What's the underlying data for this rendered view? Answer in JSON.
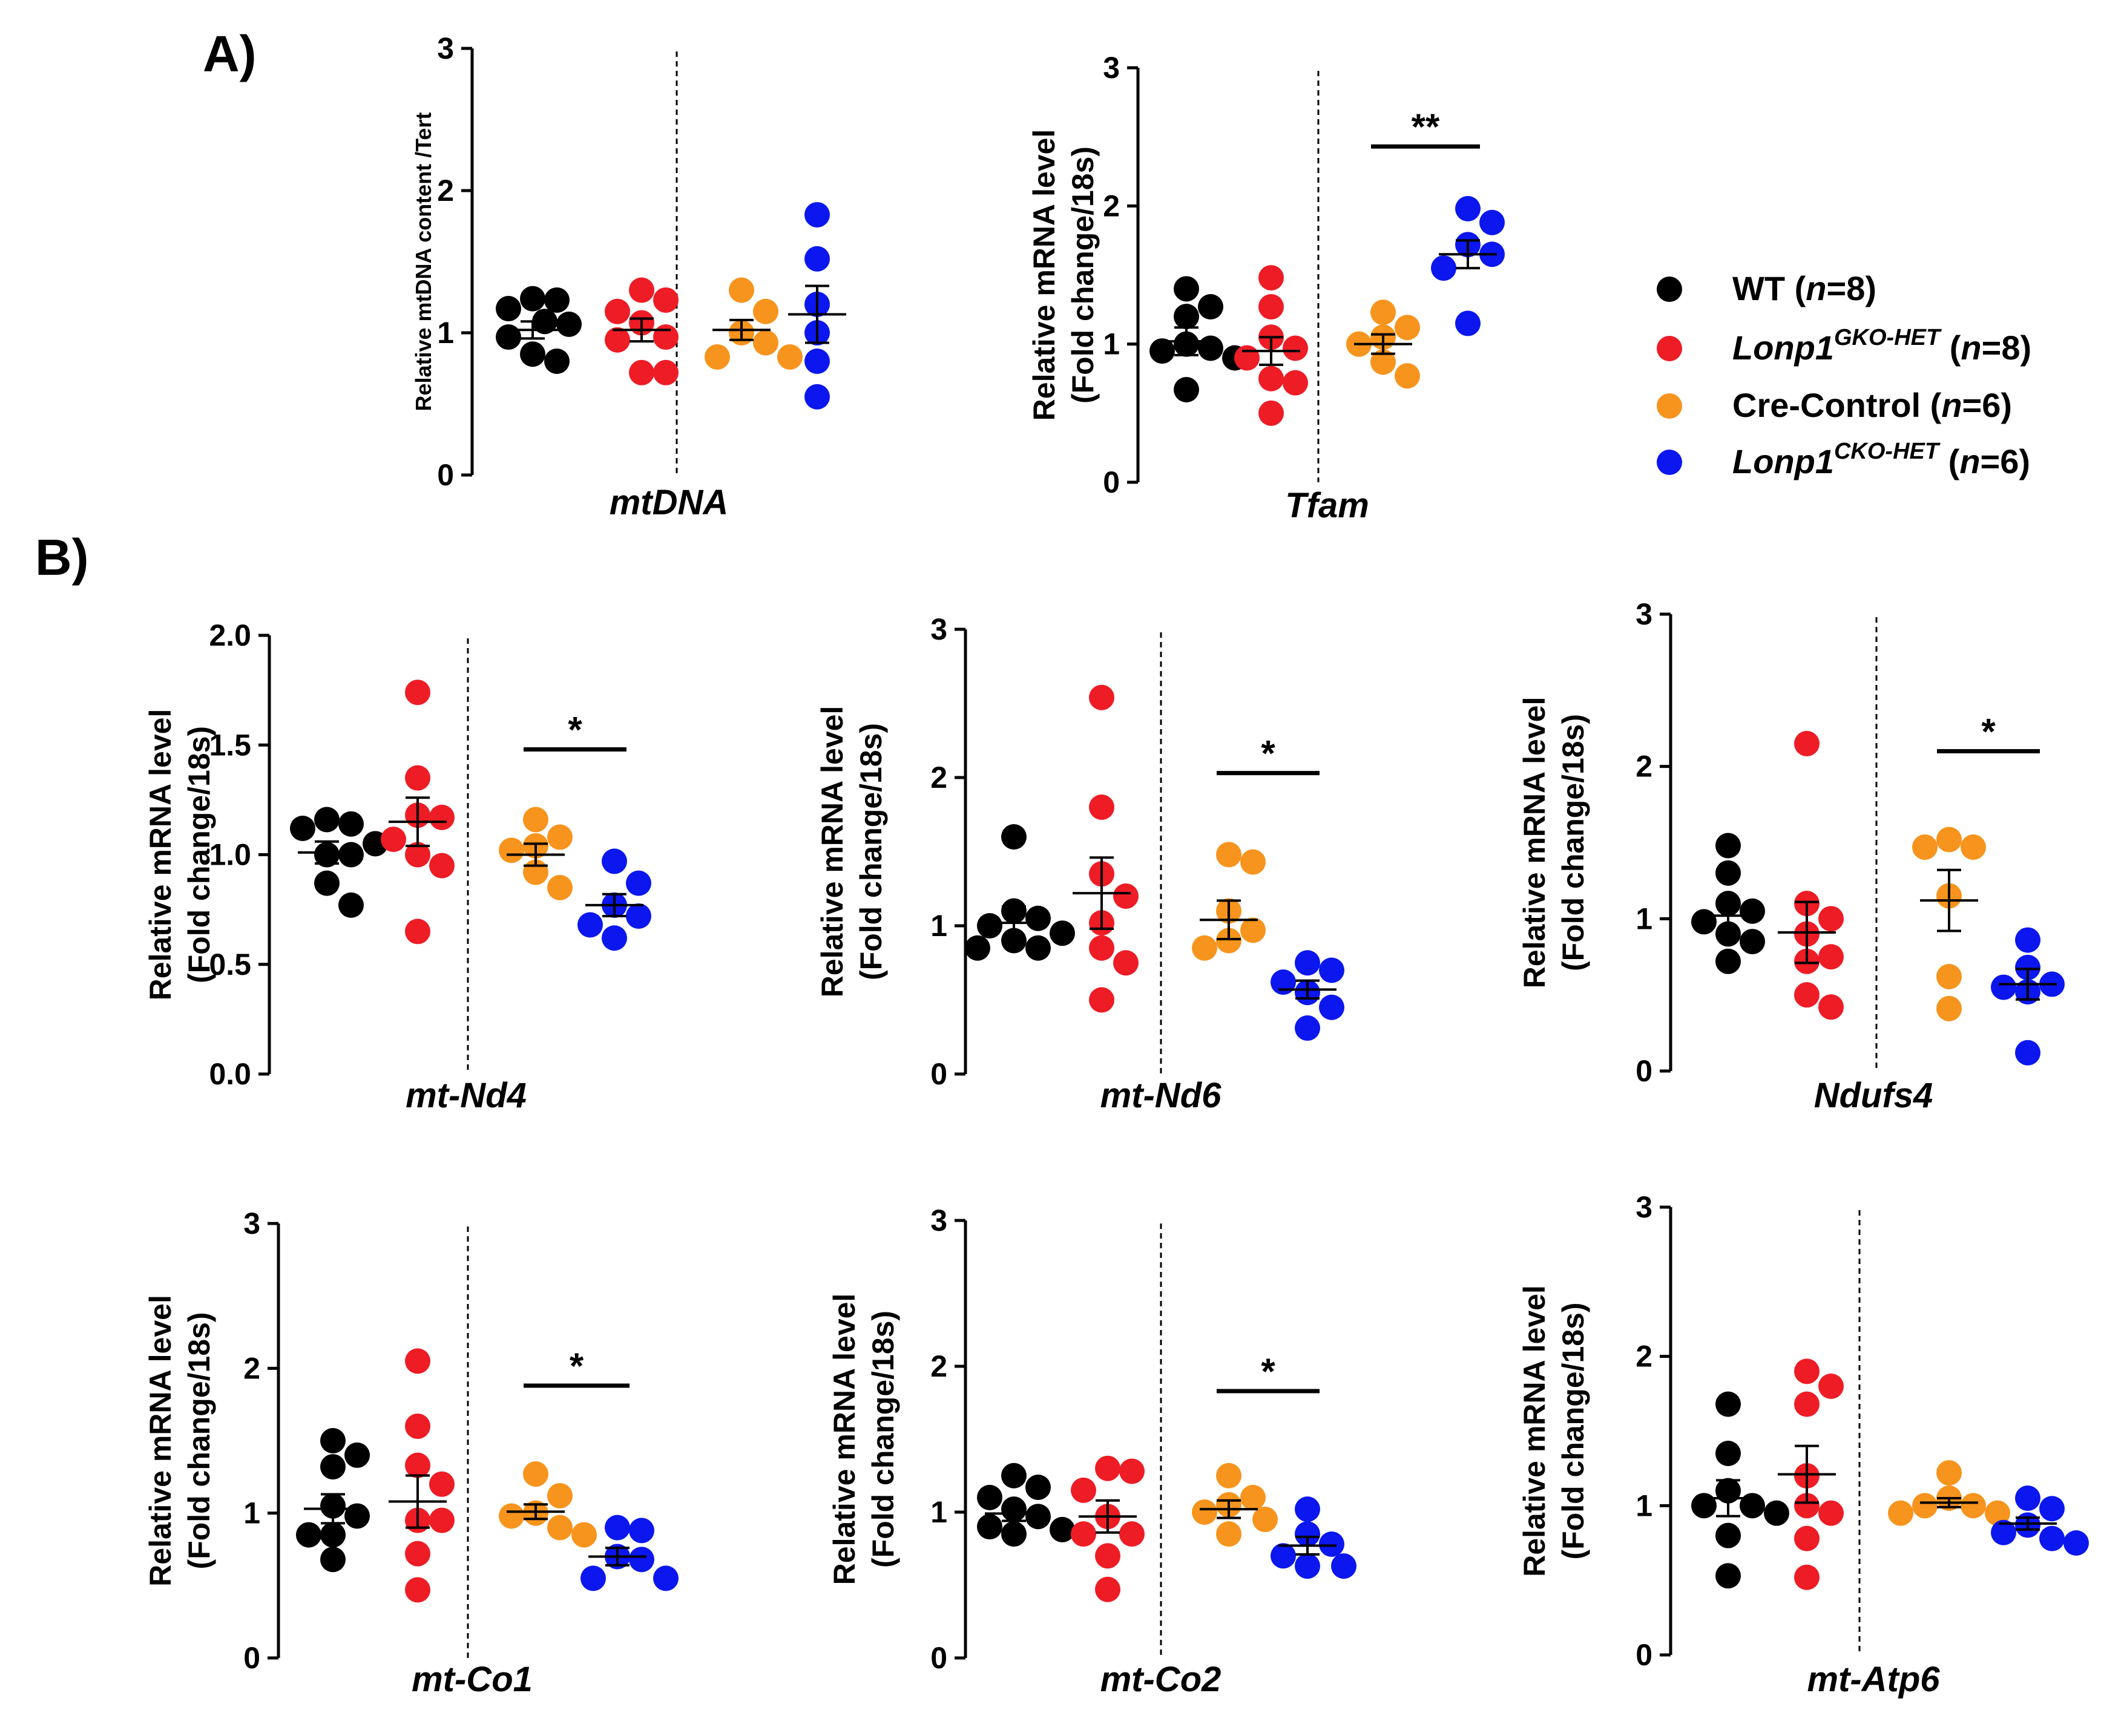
{
  "panels": {
    "a_label": "A)",
    "b_label": "B)"
  },
  "legend": {
    "items": [
      {
        "color": "#000000",
        "name": "WT",
        "sup": "",
        "n": "8",
        "italic": false
      },
      {
        "color": "#ee1c25",
        "name": "Lonp1",
        "sup": "GKO-HET",
        "n": "8",
        "italic": true
      },
      {
        "color": "#f7941d",
        "name": "Cre-Control",
        "sup": "",
        "n": "6",
        "italic": false
      },
      {
        "color": "#0b17ee",
        "name": "Lonp1",
        "sup": "CKO-HET",
        "n": "6",
        "italic": true
      }
    ]
  },
  "chart_data": [
    {
      "type": "scatter",
      "title": "mtDNA",
      "ylabel": [
        "Relative mtDNA content /Tert"
      ],
      "ylim": [
        0,
        3
      ],
      "yticks": [
        "0",
        "1",
        "2",
        "3"
      ],
      "significance": null,
      "groups": [
        {
          "name": "WT",
          "color": "#000000",
          "mean": 1.02,
          "sem": 0.06,
          "points": [
            1.23,
            1.24,
            1.17,
            1.08,
            1.06,
            0.97,
            0.85,
            0.8
          ]
        },
        {
          "name": "Lonp1 GKO-HET",
          "color": "#ee1c25",
          "mean": 1.02,
          "sem": 0.08,
          "points": [
            1.3,
            1.23,
            1.15,
            1.07,
            0.97,
            0.95,
            0.72,
            0.72
          ]
        },
        {
          "name": "Cre-Control",
          "color": "#f7941d",
          "mean": 1.02,
          "sem": 0.07,
          "points": [
            1.3,
            1.15,
            1.0,
            0.93,
            0.83,
            0.83
          ]
        },
        {
          "name": "Lonp1 CKO-HET",
          "color": "#0b17ee",
          "mean": 1.13,
          "sem": 0.2,
          "points": [
            1.83,
            1.52,
            1.2,
            1.0,
            0.8,
            0.55
          ]
        }
      ]
    },
    {
      "type": "scatter",
      "title": "Tfam",
      "ylabel": [
        "Relative mRNA level",
        "(Fold change/18s)"
      ],
      "ylim": [
        0,
        3
      ],
      "yticks": [
        "0",
        "1",
        "2",
        "3"
      ],
      "significance": {
        "label": "**",
        "y": 2.43
      },
      "groups": [
        {
          "name": "WT",
          "color": "#000000",
          "mean": 1.02,
          "sem": 0.1,
          "points": [
            1.4,
            1.27,
            1.2,
            1.0,
            0.97,
            0.95,
            0.9,
            0.67
          ]
        },
        {
          "name": "Lonp1 GKO-HET",
          "color": "#ee1c25",
          "mean": 0.95,
          "sem": 0.1,
          "points": [
            1.48,
            1.27,
            1.05,
            0.97,
            0.9,
            0.75,
            0.72,
            0.5
          ]
        },
        {
          "name": "Cre-Control",
          "color": "#f7941d",
          "mean": 1.0,
          "sem": 0.07,
          "points": [
            1.23,
            1.12,
            1.05,
            1.0,
            0.87,
            0.77
          ]
        },
        {
          "name": "Lonp1 CKO-HET",
          "color": "#0b17ee",
          "mean": 1.65,
          "sem": 0.1,
          "points": [
            1.98,
            1.88,
            1.72,
            1.65,
            1.55,
            1.15
          ]
        }
      ]
    },
    {
      "type": "scatter",
      "title": "mt-Nd4",
      "ylabel": [
        "Relative mRNA level",
        "(Fold change/18s)"
      ],
      "ylim": [
        0,
        2
      ],
      "yticks": [
        "0.0",
        "0.5",
        "1.0",
        "1.5",
        "2.0"
      ],
      "significance": {
        "label": "*",
        "y": 1.48
      },
      "groups": [
        {
          "name": "WT",
          "color": "#000000",
          "mean": 1.01,
          "sem": 0.05,
          "points": [
            1.16,
            1.14,
            1.12,
            1.05,
            1.0,
            1.0,
            0.87,
            0.77
          ]
        },
        {
          "name": "Lonp1 GKO-HET",
          "color": "#ee1c25",
          "mean": 1.15,
          "sem": 0.11,
          "points": [
            1.74,
            1.35,
            1.18,
            1.17,
            1.07,
            1.0,
            0.95,
            0.65
          ]
        },
        {
          "name": "Cre-Control",
          "color": "#f7941d",
          "mean": 1.0,
          "sem": 0.05,
          "points": [
            1.16,
            1.08,
            1.04,
            1.02,
            0.92,
            0.85
          ]
        },
        {
          "name": "Lonp1 CKO-HET",
          "color": "#0b17ee",
          "mean": 0.77,
          "sem": 0.05,
          "points": [
            0.97,
            0.87,
            0.77,
            0.72,
            0.68,
            0.62
          ]
        }
      ]
    },
    {
      "type": "scatter",
      "title": "mt-Nd6",
      "ylabel": [
        "Relative mRNA level",
        "(Fold change/18s)"
      ],
      "ylim": [
        0,
        3
      ],
      "yticks": [
        "0",
        "1",
        "2",
        "3"
      ],
      "significance": {
        "label": "*",
        "y": 2.03
      },
      "groups": [
        {
          "name": "WT",
          "color": "#000000",
          "mean": 1.02,
          "sem": 0.11,
          "points": [
            1.6,
            1.1,
            1.05,
            1.0,
            0.95,
            0.85,
            0.9,
            0.85
          ]
        },
        {
          "name": "Lonp1 GKO-HET",
          "color": "#ee1c25",
          "mean": 1.22,
          "sem": 0.24,
          "points": [
            2.54,
            1.8,
            1.35,
            1.2,
            1.02,
            0.85,
            0.75,
            0.5
          ]
        },
        {
          "name": "Cre-Control",
          "color": "#f7941d",
          "mean": 1.04,
          "sem": 0.13,
          "points": [
            1.48,
            1.43,
            1.1,
            0.97,
            0.9,
            0.85
          ]
        },
        {
          "name": "Lonp1 CKO-HET",
          "color": "#0b17ee",
          "mean": 0.57,
          "sem": 0.06,
          "points": [
            0.75,
            0.7,
            0.62,
            0.55,
            0.45,
            0.31
          ]
        }
      ]
    },
    {
      "type": "scatter",
      "title": "Ndufs4",
      "ylabel": [
        "Relative mRNA level",
        "(Fold change/18s)"
      ],
      "ylim": [
        0,
        3
      ],
      "yticks": [
        "0",
        "1",
        "2",
        "3"
      ],
      "significance": {
        "label": "*",
        "y": 2.1
      },
      "groups": [
        {
          "name": "WT",
          "color": "#000000",
          "mean": 1.02,
          "sem": 0.1,
          "points": [
            1.48,
            1.3,
            1.1,
            1.05,
            0.98,
            0.9,
            0.85,
            0.72
          ]
        },
        {
          "name": "Lonp1 GKO-HET",
          "color": "#ee1c25",
          "mean": 0.91,
          "sem": 0.2,
          "points": [
            2.15,
            1.1,
            1.0,
            0.9,
            0.75,
            0.72,
            0.5,
            0.42
          ]
        },
        {
          "name": "Cre-Control",
          "color": "#f7941d",
          "mean": 1.12,
          "sem": 0.2,
          "points": [
            1.52,
            1.47,
            1.47,
            1.15,
            0.62,
            0.41
          ]
        },
        {
          "name": "Lonp1 CKO-HET",
          "color": "#0b17ee",
          "mean": 0.57,
          "sem": 0.1,
          "points": [
            0.86,
            0.68,
            0.57,
            0.55,
            0.52,
            0.12
          ]
        }
      ]
    },
    {
      "type": "scatter",
      "title": "mt-Co1",
      "ylabel": [
        "Relative mRNA level",
        "(Fold change/18s)"
      ],
      "ylim": [
        0,
        3
      ],
      "yticks": [
        "0",
        "1",
        "2",
        "3"
      ],
      "significance": {
        "label": "*",
        "y": 1.88
      },
      "groups": [
        {
          "name": "WT",
          "color": "#000000",
          "mean": 1.03,
          "sem": 0.1,
          "points": [
            1.5,
            1.4,
            1.32,
            1.05,
            0.98,
            0.85,
            0.85,
            0.68
          ]
        },
        {
          "name": "Lonp1 GKO-HET",
          "color": "#ee1c25",
          "mean": 1.08,
          "sem": 0.18,
          "points": [
            2.05,
            1.6,
            1.33,
            1.2,
            0.95,
            0.95,
            0.72,
            0.47
          ]
        },
        {
          "name": "Cre-Control",
          "color": "#f7941d",
          "mean": 1.01,
          "sem": 0.05,
          "points": [
            1.27,
            1.12,
            1.0,
            0.98,
            0.9,
            0.85
          ]
        },
        {
          "name": "Lonp1 CKO-HET",
          "color": "#0b17ee",
          "mean": 0.7,
          "sem": 0.06,
          "points": [
            0.9,
            0.88,
            0.7,
            0.68,
            0.55,
            0.55
          ]
        }
      ]
    },
    {
      "type": "scatter",
      "title": "mt-Co2",
      "ylabel": [
        "Relative mRNA level",
        "(Fold change/18s)"
      ],
      "ylim": [
        0,
        3
      ],
      "yticks": [
        "0",
        "1",
        "2",
        "3"
      ],
      "significance": {
        "label": "*",
        "y": 1.83
      },
      "groups": [
        {
          "name": "WT",
          "color": "#000000",
          "mean": 0.99,
          "sem": 0.05,
          "points": [
            1.25,
            1.17,
            1.1,
            1.02,
            0.97,
            0.9,
            0.88,
            0.85
          ]
        },
        {
          "name": "Lonp1 GKO-HET",
          "color": "#ee1c25",
          "mean": 0.97,
          "sem": 0.11,
          "points": [
            1.3,
            1.28,
            1.15,
            0.97,
            0.85,
            0.85,
            0.7,
            0.47
          ]
        },
        {
          "name": "Cre-Control",
          "color": "#f7941d",
          "mean": 1.02,
          "sem": 0.06,
          "points": [
            1.25,
            1.1,
            1.05,
            1.0,
            0.95,
            0.85
          ]
        },
        {
          "name": "Lonp1 CKO-HET",
          "color": "#0b17ee",
          "mean": 0.77,
          "sem": 0.06,
          "points": [
            1.02,
            0.85,
            0.78,
            0.7,
            0.63,
            0.63
          ]
        }
      ]
    },
    {
      "type": "scatter",
      "title": "mt-Atp6",
      "ylabel": [
        "Relative mRNA level",
        "(Fold change/18s)"
      ],
      "ylim": [
        0,
        3
      ],
      "yticks": [
        "0",
        "1",
        "2",
        "3"
      ],
      "significance": null,
      "groups": [
        {
          "name": "WT",
          "color": "#000000",
          "mean": 1.05,
          "sem": 0.12,
          "points": [
            1.68,
            1.35,
            1.1,
            1.0,
            1.0,
            0.95,
            0.8,
            0.53
          ]
        },
        {
          "name": "Lonp1 GKO-HET",
          "color": "#ee1c25",
          "mean": 1.21,
          "sem": 0.19,
          "points": [
            1.9,
            1.8,
            1.68,
            1.2,
            1.0,
            0.95,
            0.78,
            0.52
          ]
        },
        {
          "name": "Cre-Control",
          "color": "#f7941d",
          "mean": 1.02,
          "sem": 0.03,
          "points": [
            1.22,
            1.05,
            1.0,
            1.0,
            0.95,
            0.95
          ]
        },
        {
          "name": "Lonp1 CKO-HET",
          "color": "#0b17ee",
          "mean": 0.88,
          "sem": 0.04,
          "points": [
            1.05,
            0.98,
            0.87,
            0.82,
            0.78,
            0.75
          ]
        }
      ]
    }
  ]
}
